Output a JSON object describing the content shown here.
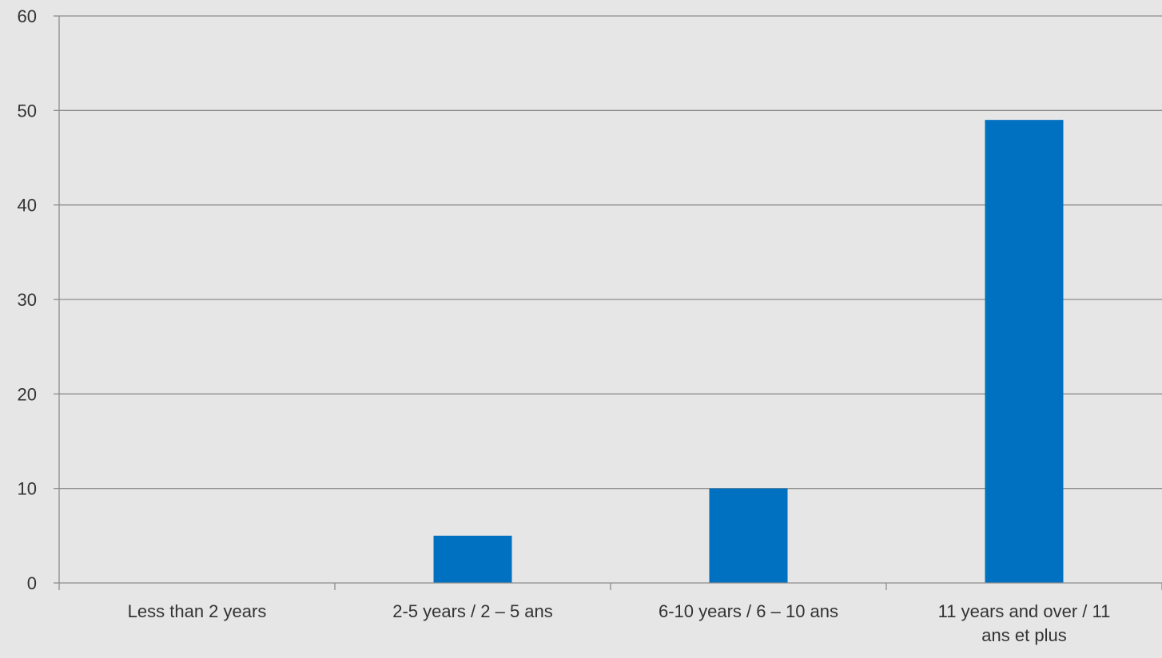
{
  "chart_data": {
    "type": "bar",
    "categories": [
      [
        "Less than 2 years"
      ],
      [
        "2-5 years / 2 – 5 ans"
      ],
      [
        "6-10 years / 6 – 10 ans"
      ],
      [
        "11 years and over / 11",
        "ans et plus"
      ]
    ],
    "values": [
      0,
      5,
      10,
      49
    ],
    "ylim": [
      0,
      60
    ],
    "yticks": [
      "0",
      "10",
      "20",
      "30",
      "40",
      "50",
      "60"
    ],
    "grid": true,
    "legend": "none",
    "colors": {
      "bar": "#0070c0",
      "grid": "#8c8c8c",
      "axis": "#8c8c8c",
      "background": "#e6e6e6",
      "text": "#333333"
    }
  }
}
